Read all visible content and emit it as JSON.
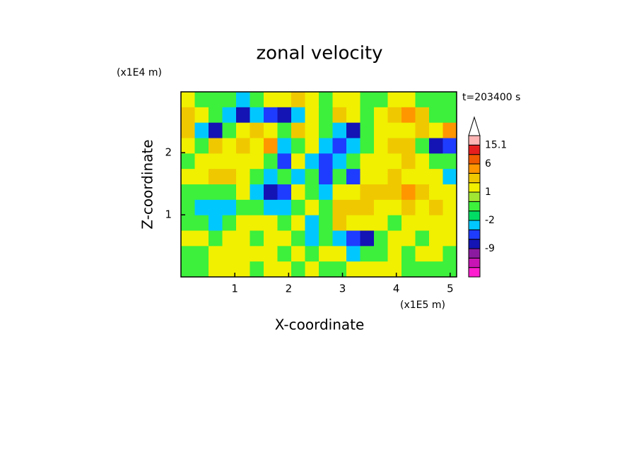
{
  "chart_data": {
    "type": "contour",
    "title": "zonal velocity",
    "x_label": "X-coordinate",
    "y_label": "Z-coordinate",
    "x_unit": "(x1E5 m)",
    "y_unit": "(x1E4 m)",
    "time_label": "t=203400 s",
    "xlim": [
      0,
      5.12
    ],
    "ylim": [
      0,
      2.98
    ],
    "xticks": [
      1,
      2,
      3,
      4,
      5
    ],
    "yticks": [
      1,
      2
    ],
    "levels": [
      -15,
      -12,
      -9,
      -6,
      -4,
      -2,
      -1,
      0,
      1,
      2,
      4,
      6,
      9,
      12,
      15.1
    ],
    "colors": [
      "#ff1ecf",
      "#c814b4",
      "#8c1aa0",
      "#1414b4",
      "#1e3cff",
      "#00c8ff",
      "#00dc64",
      "#3cf03c",
      "#a0e632",
      "#f0f000",
      "#f0c800",
      "#ff9600",
      "#f05a00",
      "#e61e1e",
      "#f08282",
      "#ffb4b4"
    ],
    "colorbar_ticks": [
      15.1,
      6,
      1,
      -2,
      -9
    ],
    "z": [
      [
        1.5,
        -0.5,
        -0.5,
        -0.5,
        -3,
        -0.5,
        1.5,
        1.5,
        3,
        1.5,
        -0.5,
        1.5,
        1.5,
        -0.5,
        -0.5,
        1.5,
        1.5,
        -0.5,
        -0.5,
        -0.5
      ],
      [
        3,
        1.5,
        -0.5,
        -3,
        -7,
        -3,
        -5,
        -7,
        -3,
        1.5,
        -0.5,
        3,
        1.5,
        -0.5,
        1.5,
        3,
        5,
        3,
        -0.5,
        -0.5
      ],
      [
        3,
        -3,
        -7,
        -0.5,
        1.5,
        3,
        1.5,
        -0.5,
        3,
        1.5,
        -0.5,
        -3,
        -7,
        -0.5,
        1.5,
        1.5,
        1.5,
        3,
        1.5,
        5
      ],
      [
        1.5,
        -0.5,
        3,
        1.5,
        3,
        1.5,
        5,
        -3,
        -0.5,
        1.5,
        -3,
        -5,
        -3,
        -0.5,
        1.5,
        3,
        3,
        -0.5,
        -7,
        -5
      ],
      [
        -0.5,
        1.5,
        1.5,
        1.5,
        1.5,
        1.5,
        -0.5,
        -5,
        1.5,
        -3,
        -5,
        -3,
        -0.5,
        1.5,
        1.5,
        1.5,
        3,
        1.5,
        -0.5,
        -0.5
      ],
      [
        1.5,
        1.5,
        3,
        3,
        1.5,
        -0.5,
        -3,
        -0.5,
        -3,
        -0.5,
        -5,
        -0.5,
        -5,
        1.5,
        1.5,
        3,
        1.5,
        1.5,
        1.5,
        -3
      ],
      [
        -0.5,
        -0.5,
        -0.5,
        -0.5,
        1.5,
        -3,
        -7,
        -5,
        1.5,
        -0.5,
        -3,
        1.5,
        1.5,
        3,
        3,
        3,
        5,
        3,
        1.5,
        1.5
      ],
      [
        -0.5,
        -3,
        -3,
        -3,
        -0.5,
        -0.5,
        -3,
        -3,
        -0.5,
        1.5,
        -0.5,
        3,
        3,
        3,
        1.5,
        1.5,
        3,
        1.5,
        3,
        1.5
      ],
      [
        -0.5,
        -0.5,
        -3,
        -0.5,
        1.5,
        1.5,
        1.5,
        -0.5,
        1.5,
        -3,
        -0.5,
        3,
        1.5,
        1.5,
        1.5,
        -0.5,
        1.5,
        1.5,
        1.5,
        1.5
      ],
      [
        1.5,
        1.5,
        -0.5,
        1.5,
        1.5,
        -0.5,
        1.5,
        1.5,
        -0.5,
        -3,
        -0.5,
        -3,
        -5,
        -7,
        -0.5,
        1.5,
        1.5,
        -0.5,
        1.5,
        1.5
      ],
      [
        -0.5,
        -0.5,
        1.5,
        1.5,
        1.5,
        1.5,
        1.5,
        -0.5,
        1.5,
        -0.5,
        1.5,
        1.5,
        -3,
        -0.5,
        -0.5,
        1.5,
        -0.5,
        1.5,
        1.5,
        -0.5
      ],
      [
        -0.5,
        -0.5,
        1.5,
        1.5,
        1.5,
        -0.5,
        1.5,
        1.5,
        -0.5,
        1.5,
        -0.5,
        -0.5,
        1.5,
        1.5,
        1.5,
        1.5,
        -0.5,
        -0.5,
        -0.5,
        -0.5
      ]
    ]
  }
}
